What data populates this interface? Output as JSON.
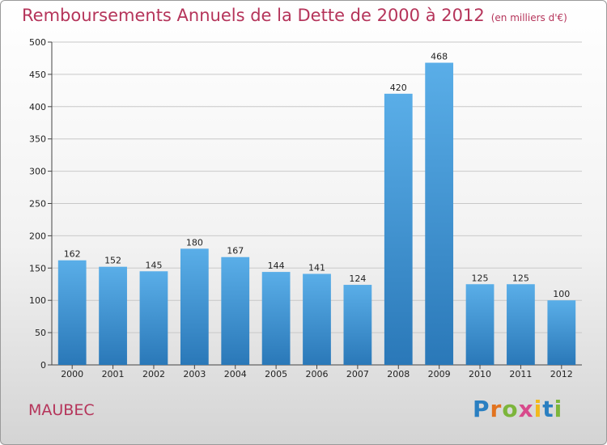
{
  "chart_data": {
    "type": "bar",
    "title": "Remboursements Annuels de la Dette de 2000 à 2012",
    "subtitle": "(en milliers d'€)",
    "xlabel": "",
    "ylabel": "",
    "categories": [
      "2000",
      "2001",
      "2002",
      "2003",
      "2004",
      "2005",
      "2006",
      "2007",
      "2008",
      "2009",
      "2010",
      "2011",
      "2012"
    ],
    "values": [
      162,
      152,
      145,
      180,
      167,
      144,
      141,
      124,
      420,
      468,
      125,
      125,
      100
    ],
    "ylim": [
      0,
      500
    ],
    "yticks": [
      0,
      50,
      100,
      150,
      200,
      250,
      300,
      350,
      400,
      450,
      500
    ],
    "grid": true,
    "bar_color": "#3f95d6"
  },
  "place": "MAUBEC",
  "logo_text": "Proxiti"
}
